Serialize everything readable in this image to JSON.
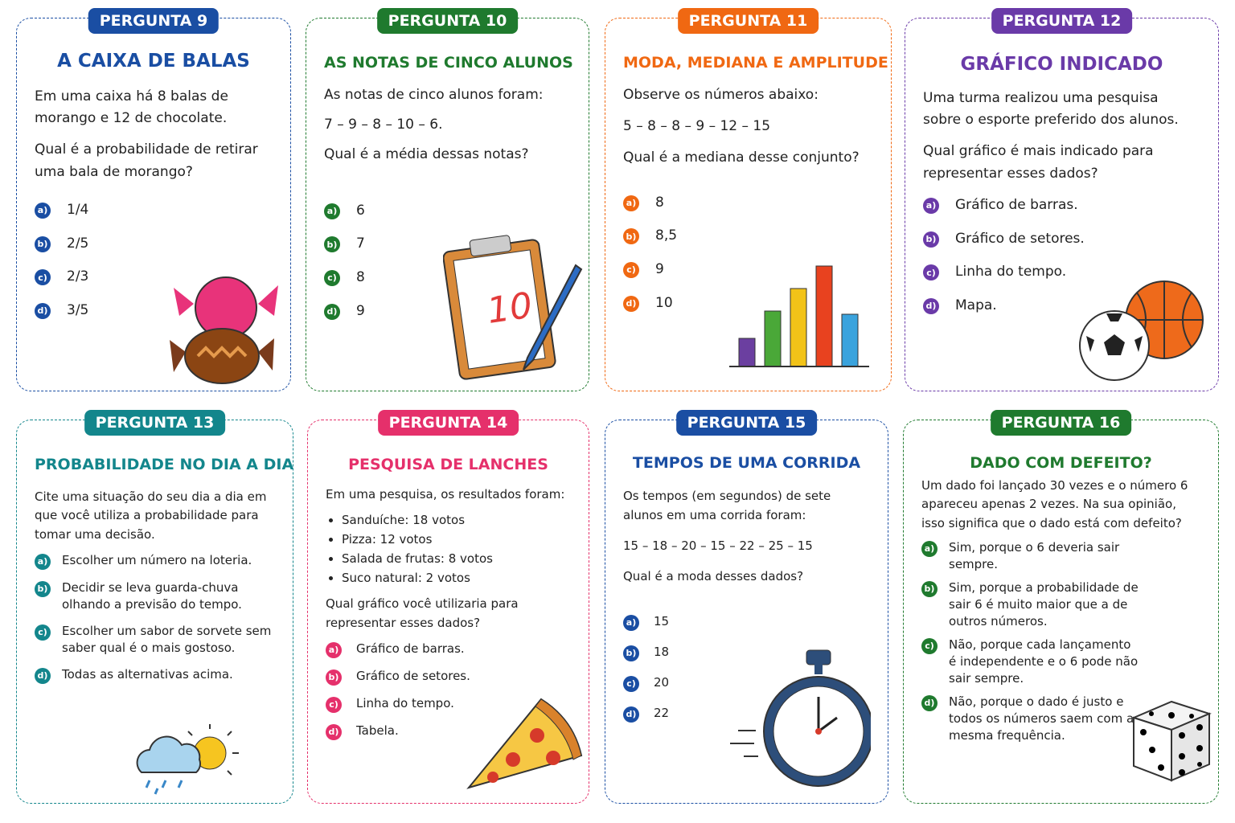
{
  "cards": [
    {
      "badge": "PERGUNTA 9",
      "title": "A CAIXA DE BALAS",
      "blocks": [
        {
          "p": "Em uma caixa há 8 balas de morango e 12 de chocolate."
        },
        {
          "p": "Qual é a probabilidade de retirar uma bala de morango?"
        }
      ],
      "options": [
        {
          "letter": "a)",
          "text": "1/4"
        },
        {
          "letter": "b)",
          "text": "2/5"
        },
        {
          "letter": "c)",
          "text": "2/3"
        },
        {
          "letter": "d)",
          "text": "3/5"
        }
      ]
    },
    {
      "badge": "PERGUNTA 10",
      "title": "AS NOTAS DE CINCO ALUNOS",
      "blocks": [
        {
          "p": "As notas de cinco alunos foram:"
        },
        {
          "p": "7 – 9 – 8 – 10 – 6."
        },
        {
          "p": "Qual é a média dessas notas?"
        }
      ],
      "options": [
        {
          "letter": "a)",
          "text": "6"
        },
        {
          "letter": "b)",
          "text": "7"
        },
        {
          "letter": "c)",
          "text": "8"
        },
        {
          "letter": "d)",
          "text": "9"
        }
      ],
      "illustration_text": "10"
    },
    {
      "badge": "PERGUNTA 11",
      "title": "MODA, MEDIANA E AMPLITUDE",
      "blocks": [
        {
          "p": "Observe os números abaixo:"
        },
        {
          "p": "5 – 8 – 8 – 9 – 12 – 15"
        },
        {
          "p": "Qual é a mediana desse conjunto?"
        }
      ],
      "options": [
        {
          "letter": "a)",
          "text": "8"
        },
        {
          "letter": "b)",
          "text": "8,5"
        },
        {
          "letter": "c)",
          "text": "9"
        },
        {
          "letter": "d)",
          "text": "10"
        }
      ]
    },
    {
      "badge": "PERGUNTA 12",
      "title": "GRÁFICO INDICADO",
      "blocks": [
        {
          "p": "Uma turma realizou uma pesquisa sobre o esporte preferido dos alunos."
        },
        {
          "p": "Qual gráfico é mais indicado para representar esses dados?"
        }
      ],
      "options": [
        {
          "letter": "a)",
          "text": "Gráfico de barras."
        },
        {
          "letter": "b)",
          "text": "Gráfico de setores."
        },
        {
          "letter": "c)",
          "text": "Linha do tempo."
        },
        {
          "letter": "d)",
          "text": "Mapa."
        }
      ]
    },
    {
      "badge": "PERGUNTA 13",
      "title": "PROBABILIDADE NO DIA A DIA",
      "blocks": [
        {
          "p": "Cite uma situação do seu dia a dia em que você utiliza a probabilidade para tomar uma decisão."
        }
      ],
      "options": [
        {
          "letter": "a)",
          "text": "Escolher um número na loteria."
        },
        {
          "letter": "b)",
          "text": "Decidir se leva guarda-chuva olhando a previsão do tempo."
        },
        {
          "letter": "c)",
          "text": "Escolher um sabor de sorvete sem saber qual é o mais gostoso."
        },
        {
          "letter": "d)",
          "text": "Todas as alternativas acima."
        }
      ]
    },
    {
      "badge": "PERGUNTA 14",
      "title": "PESQUISA DE LANCHES",
      "blocks": [
        {
          "p": "Em uma pesquisa, os resultados foram:"
        },
        {
          "ul": [
            "Sanduíche: 18 votos",
            "Pizza: 12 votos",
            "Salada de frutas: 8 votos",
            "Suco natural: 2 votos"
          ]
        },
        {
          "p": "Qual gráfico você utilizaria para representar esses dados?"
        }
      ],
      "options": [
        {
          "letter": "a)",
          "text": "Gráfico de barras."
        },
        {
          "letter": "b)",
          "text": "Gráfico de setores."
        },
        {
          "letter": "c)",
          "text": "Linha do tempo."
        },
        {
          "letter": "d)",
          "text": "Tabela."
        }
      ]
    },
    {
      "badge": "PERGUNTA 15",
      "title": "TEMPOS DE UMA CORRIDA",
      "blocks": [
        {
          "p": "Os tempos (em segundos) de sete alunos em uma corrida foram:"
        },
        {
          "p": "15 – 18 – 20 – 15 – 22 – 25 – 15"
        },
        {
          "p": "Qual é a moda desses dados?"
        }
      ],
      "options": [
        {
          "letter": "a)",
          "text": "15"
        },
        {
          "letter": "b)",
          "text": "18"
        },
        {
          "letter": "c)",
          "text": "20"
        },
        {
          "letter": "d)",
          "text": "22"
        }
      ]
    },
    {
      "badge": "PERGUNTA 16",
      "title": "DADO COM DEFEITO?",
      "blocks": [
        {
          "p": "Um dado foi lançado 30 vezes e o número 6 apareceu apenas 2 vezes. Na sua opinião, isso significa que o dado está com defeito?"
        }
      ],
      "options": [
        {
          "letter": "a)",
          "text": "Sim, porque o 6 deveria sair sempre."
        },
        {
          "letter": "b)",
          "text": "Sim, porque a probabilidade de sair 6 é muito maior que a de outros números."
        },
        {
          "letter": "c)",
          "text": "Não, porque cada lançamento é independente e o 6 pode não sair sempre."
        },
        {
          "letter": "d)",
          "text": "Não, porque o dado é justo e todos os números saem com a mesma frequência."
        }
      ]
    }
  ]
}
